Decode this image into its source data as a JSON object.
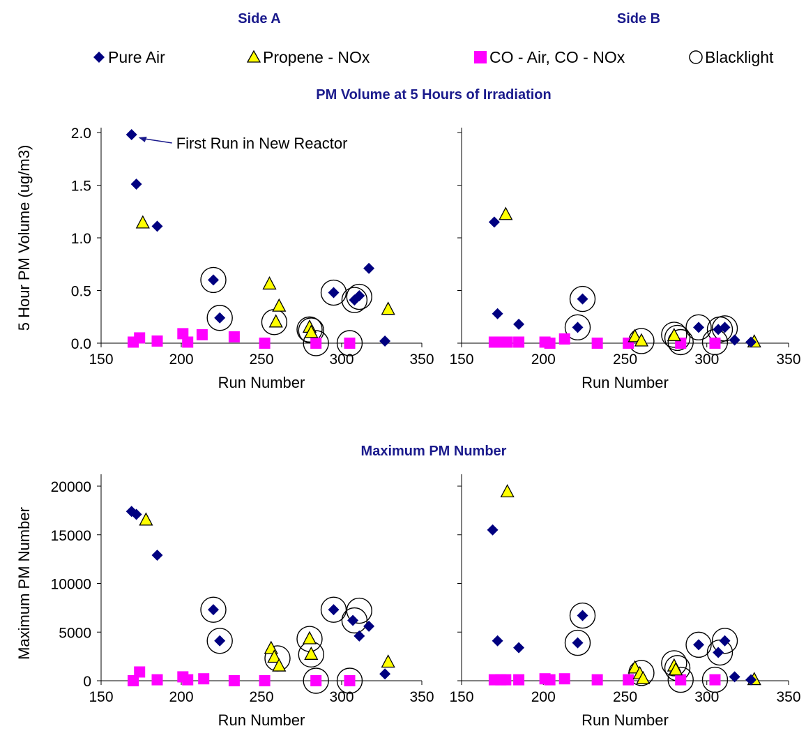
{
  "headers": {
    "side_a": "Side A",
    "side_b": "Side B"
  },
  "legend": [
    {
      "label": "Pure Air",
      "symbol": "diamond",
      "color": "#000080"
    },
    {
      "label": "Propene - NOx",
      "symbol": "triangle",
      "color": "#ffff00"
    },
    {
      "label": "CO - Air, CO - NOx",
      "symbol": "square",
      "color": "#ff00ff"
    },
    {
      "label": "Blacklight",
      "symbol": "circle",
      "color": "#000000"
    }
  ],
  "colors": {
    "title": "#1a1a8c",
    "pure_air": "#000080",
    "propene": "#ffff00",
    "co": "#ff00ff"
  },
  "chart_data": [
    {
      "type": "scatter",
      "panel": "top-left",
      "title": "PM Volume at 5 Hours of Irradiation",
      "xlabel": "Run Number",
      "ylabel": "5 Hour PM Volume (ug/m3)",
      "xlim": [
        150,
        350
      ],
      "ylim": [
        0,
        2.0
      ],
      "xticks": [
        "150",
        "200",
        "250",
        "300",
        "350"
      ],
      "yticks": [
        "0.0",
        "0.5",
        "1.0",
        "1.5",
        "2.0"
      ],
      "annotation": "First Run in New Reactor",
      "series": [
        {
          "name": "Pure Air",
          "x": [
            169,
            172,
            185,
            220,
            224,
            295,
            308,
            311,
            317,
            327
          ],
          "y": [
            1.98,
            1.51,
            1.11,
            0.6,
            0.24,
            0.48,
            0.41,
            0.45,
            0.71,
            0.02
          ]
        },
        {
          "name": "Propene - NOx",
          "x": [
            176,
            255,
            259,
            261,
            280,
            281,
            329
          ],
          "y": [
            1.14,
            0.56,
            0.2,
            0.35,
            0.15,
            0.1,
            0.32
          ]
        },
        {
          "name": "CO - Air, CO - NOx",
          "x": [
            170,
            174,
            185,
            201,
            204,
            213,
            233,
            252,
            284,
            305
          ],
          "y": [
            0.01,
            0.05,
            0.02,
            0.09,
            0.01,
            0.08,
            0.06,
            0.0,
            0.0,
            0.0
          ]
        },
        {
          "name": "Blacklight",
          "x": [
            220,
            224,
            258,
            280,
            281,
            284,
            295,
            305,
            308,
            311
          ],
          "y": [
            0.6,
            0.24,
            0.2,
            0.13,
            0.12,
            0.0,
            0.48,
            0.0,
            0.41,
            0.44
          ]
        }
      ]
    },
    {
      "type": "scatter",
      "panel": "top-right",
      "xlabel": "Run Number",
      "ylabel": "",
      "xlim": [
        150,
        350
      ],
      "ylim": [
        0,
        2.0
      ],
      "xticks": [
        "150",
        "200",
        "250",
        "300",
        "350"
      ],
      "series": [
        {
          "name": "Pure Air",
          "x": [
            170,
            172,
            185,
            221,
            224,
            295,
            307,
            311,
            317,
            327
          ],
          "y": [
            1.15,
            0.28,
            0.18,
            0.15,
            0.42,
            0.15,
            0.13,
            0.15,
            0.03,
            0.01
          ]
        },
        {
          "name": "Propene - NOx",
          "x": [
            177,
            256,
            260,
            280,
            329
          ],
          "y": [
            1.22,
            0.06,
            0.02,
            0.07,
            0.01
          ]
        },
        {
          "name": "CO - Air, CO - NOx",
          "x": [
            170,
            173,
            178,
            185,
            201,
            204,
            213,
            233,
            252,
            284,
            305
          ],
          "y": [
            0.01,
            0.01,
            0.01,
            0.01,
            0.01,
            0.0,
            0.04,
            0.0,
            0.0,
            0.0,
            0.0
          ]
        },
        {
          "name": "Blacklight",
          "x": [
            221,
            224,
            260,
            280,
            282,
            284,
            295,
            305,
            308,
            311
          ],
          "y": [
            0.15,
            0.42,
            0.02,
            0.08,
            0.05,
            0.01,
            0.15,
            0.01,
            0.13,
            0.14
          ]
        }
      ]
    },
    {
      "type": "scatter",
      "panel": "bottom-left",
      "title": "Maximum PM Number",
      "xlabel": "Run Number",
      "ylabel": "Maximum PM Number",
      "xlim": [
        150,
        350
      ],
      "ylim": [
        0,
        20000
      ],
      "xticks": [
        "150",
        "200",
        "250",
        "300",
        "350"
      ],
      "yticks": [
        "0",
        "5000",
        "10000",
        "15000",
        "20000"
      ],
      "series": [
        {
          "name": "Pure Air",
          "x": [
            169,
            172,
            185,
            220,
            224,
            295,
            307,
            311,
            317,
            327
          ],
          "y": [
            17400,
            17100,
            12900,
            7300,
            4100,
            7300,
            6200,
            4600,
            5600,
            700
          ]
        },
        {
          "name": "Propene - NOx",
          "x": [
            178,
            256,
            258,
            261,
            280,
            281,
            329
          ],
          "y": [
            16500,
            3300,
            2400,
            1500,
            4300,
            2700,
            1900
          ]
        },
        {
          "name": "CO - Air, CO - NOx",
          "x": [
            170,
            174,
            185,
            201,
            204,
            214,
            233,
            252,
            284,
            305
          ],
          "y": [
            0,
            900,
            100,
            400,
            100,
            200,
            0,
            0,
            0,
            0
          ]
        },
        {
          "name": "Blacklight",
          "x": [
            220,
            224,
            260,
            280,
            281,
            284,
            295,
            305,
            308,
            311
          ],
          "y": [
            7300,
            4100,
            2300,
            4300,
            2700,
            0,
            7300,
            0,
            6200,
            7200
          ]
        }
      ]
    },
    {
      "type": "scatter",
      "panel": "bottom-right",
      "xlabel": "Run Number",
      "ylabel": "",
      "xlim": [
        150,
        350
      ],
      "ylim": [
        0,
        20000
      ],
      "xticks": [
        "150",
        "200",
        "250",
        "300",
        "350"
      ],
      "series": [
        {
          "name": "Pure Air",
          "x": [
            169,
            172,
            185,
            221,
            224,
            295,
            307,
            311,
            317,
            327
          ],
          "y": [
            15500,
            4100,
            3400,
            3900,
            6700,
            3700,
            2900,
            4100,
            400,
            100
          ]
        },
        {
          "name": "Propene - NOx",
          "x": [
            178,
            256,
            259,
            261,
            280,
            281,
            329
          ],
          "y": [
            19400,
            1300,
            700,
            200,
            1500,
            1100,
            100
          ]
        },
        {
          "name": "CO - Air, CO - NOx",
          "x": [
            170,
            174,
            177,
            185,
            201,
            204,
            213,
            233,
            252,
            284,
            305
          ],
          "y": [
            100,
            100,
            100,
            100,
            200,
            100,
            200,
            100,
            100,
            100,
            100
          ]
        },
        {
          "name": "Blacklight",
          "x": [
            221,
            224,
            260,
            280,
            282,
            284,
            295,
            305,
            308,
            311
          ],
          "y": [
            3900,
            6700,
            800,
            1800,
            1300,
            100,
            3700,
            100,
            2900,
            4100
          ]
        }
      ]
    }
  ]
}
